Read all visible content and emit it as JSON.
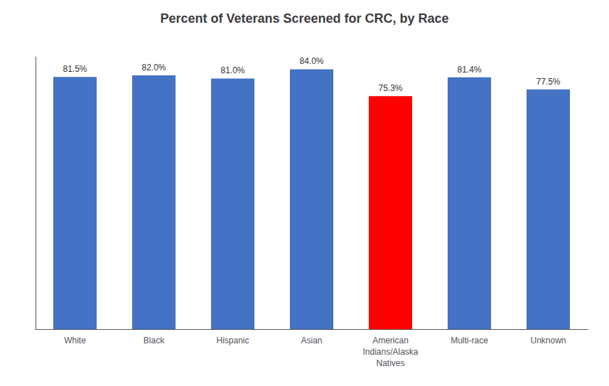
{
  "chart_data": {
    "type": "bar",
    "title": "Percent of Veterans Screened for CRC, by Race",
    "categories": [
      "White",
      "Black",
      "Hispanic",
      "Asian",
      "American\nIndians/Alaska\nNatives",
      "Multi-race",
      "Unknown"
    ],
    "values": [
      81.5,
      82.0,
      81.0,
      84.0,
      75.3,
      81.4,
      77.5
    ],
    "value_labels": [
      "81.5%",
      "82.0%",
      "81.0%",
      "84.0%",
      "75.3%",
      "81.4%",
      "77.5%"
    ],
    "data_labels": true,
    "colors": [
      "#4472C4",
      "#4472C4",
      "#4472C4",
      "#4472C4",
      "#FF0000",
      "#4472C4",
      "#4472C4"
    ],
    "ylim": [
      0,
      88
    ],
    "tick_labels": "x",
    "grid": false
  }
}
